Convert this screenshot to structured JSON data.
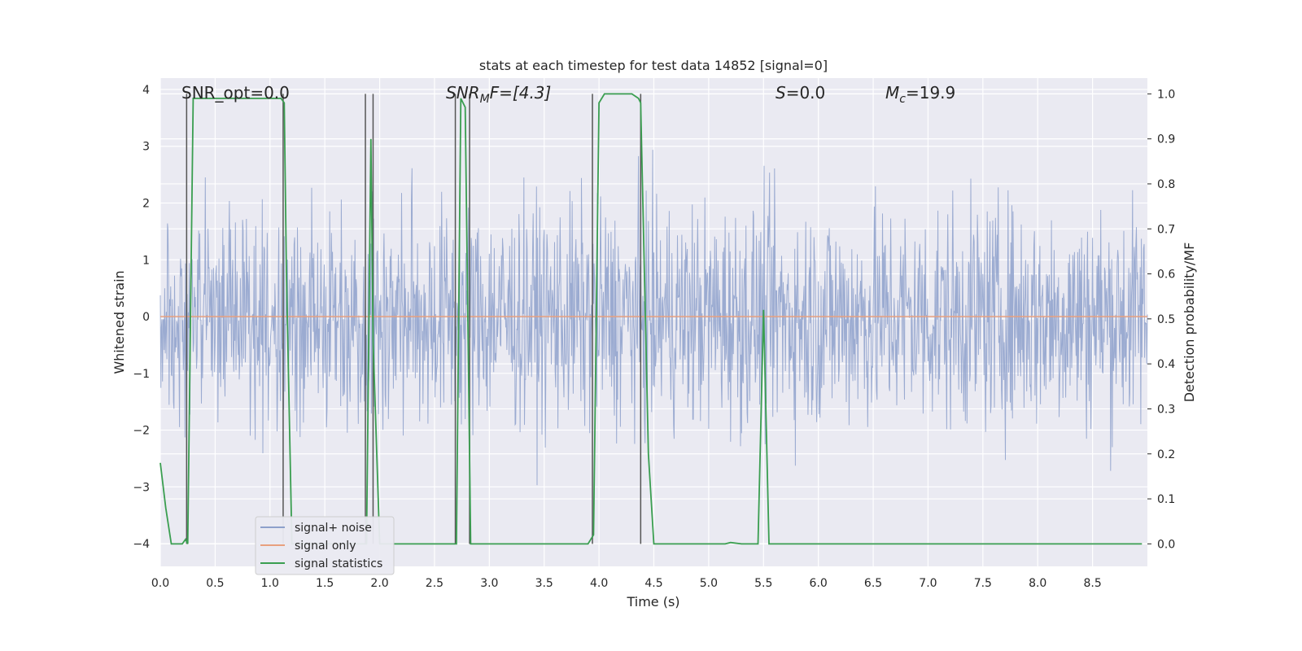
{
  "chart_data": {
    "type": "line",
    "title": "stats at each timestep for test data 14852 [signal=0]",
    "xlabel": "Time (s)",
    "ylabel_left": "Whitened strain",
    "ylabel_right": "Detection probability/MF",
    "xlim": [
      0.0,
      9.0
    ],
    "ylim_left": [
      -4.4,
      4.2
    ],
    "ylim_right": [
      -0.05,
      1.035
    ],
    "x_ticks": [
      "0.0",
      "0.5",
      "1.0",
      "1.5",
      "2.0",
      "2.5",
      "3.0",
      "3.5",
      "4.0",
      "4.5",
      "5.0",
      "5.5",
      "6.0",
      "6.5",
      "7.0",
      "7.5",
      "8.0",
      "8.5"
    ],
    "y_left_ticks": [
      "4",
      "3",
      "2",
      "1",
      "0",
      "−1",
      "−2",
      "−3",
      "−4"
    ],
    "y_right_ticks": [
      "1.0",
      "0.9",
      "0.8",
      "0.7",
      "0.6",
      "0.5",
      "0.4",
      "0.3",
      "0.2",
      "0.1",
      "0.0"
    ],
    "annotations": {
      "snr_opt": "SNR_opt=0.0",
      "snr_mf_main": "SNR",
      "snr_mf_sub": "M",
      "snr_mf_rest": "F=[4.3]",
      "s_main": "S",
      "s_rest": "=0.0",
      "mc_main": "M",
      "mc_sub": "c",
      "mc_rest": "=19.9"
    },
    "legend": {
      "position": "lower-left",
      "entries": [
        "signal+ noise",
        "signal only",
        "signal statistics"
      ]
    },
    "series": [
      {
        "name": "signal+ noise",
        "color": "#8da0cb",
        "description": "dense whitened-strain noise spanning about -3.5 to 3.5",
        "amplitude_range": [
          -3.9,
          3.6
        ]
      },
      {
        "name": "signal only",
        "color": "#e8a07e",
        "values_constant": 0.0
      },
      {
        "name": "signal statistics",
        "color": "#3a9e50",
        "x": [
          0.0,
          0.05,
          0.1,
          0.15,
          0.2,
          0.23,
          0.25,
          0.3,
          0.35,
          0.5,
          0.8,
          1.0,
          1.1,
          1.13,
          1.15,
          1.2,
          1.3,
          1.5,
          1.7,
          1.85,
          1.88,
          1.9,
          1.92,
          1.94,
          2.0,
          2.05,
          2.1,
          2.2,
          2.5,
          2.65,
          2.7,
          2.74,
          2.78,
          2.83,
          2.88,
          3.0,
          3.5,
          3.9,
          3.95,
          4.0,
          4.05,
          4.3,
          4.36,
          4.38,
          4.45,
          4.5,
          5.0,
          5.15,
          5.2,
          5.3,
          5.45,
          5.5,
          5.55,
          5.6,
          6.0,
          7.0,
          8.0,
          8.95
        ],
        "y": [
          0.18,
          0.08,
          0.0,
          0.0,
          0.0,
          0.01,
          0.0,
          0.99,
          0.99,
          0.99,
          0.99,
          0.99,
          0.99,
          0.98,
          0.6,
          0.0,
          0.0,
          0.0,
          0.0,
          0.0,
          0.0,
          0.45,
          0.9,
          0.45,
          0.0,
          0.0,
          0.0,
          0.0,
          0.0,
          0.0,
          0.0,
          0.99,
          0.97,
          0.0,
          0.0,
          0.0,
          0.0,
          0.0,
          0.02,
          0.98,
          1.0,
          1.0,
          0.99,
          0.98,
          0.2,
          0.0,
          0.0,
          0.0,
          0.003,
          0.0,
          0.0,
          0.52,
          0.0,
          0.0,
          0.0,
          0.0,
          0.0,
          0.0
        ]
      }
    ],
    "vertical_lines_x": [
      0.24,
      1.12,
      1.87,
      1.94,
      2.69,
      2.82,
      3.94,
      4.38
    ],
    "grid": true
  }
}
